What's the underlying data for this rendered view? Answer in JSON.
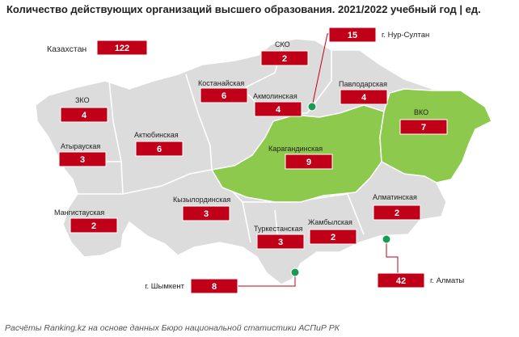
{
  "title": "Количество действующих организаций высшего образования. 2021/2022 учебный год | ед.",
  "source": "Расчёты Ranking.kz на основе данных Бюро национальной статистики АСПиР РК",
  "colors": {
    "region_fill": "#dcdcdc",
    "region_border": "#ffffff",
    "highlight": "#8dc94c",
    "value_box": "#c00018",
    "value_box_border": "#ffffff",
    "city_marker": "#1a9a50",
    "leader_line": "#c00018"
  },
  "total": {
    "label": "Казахстан",
    "value": "122"
  },
  "regions": [
    {
      "id": "sko",
      "name": "СКО",
      "value": "2",
      "highlighted": false
    },
    {
      "id": "kostanay",
      "name": "Костанайская",
      "value": "6",
      "highlighted": false
    },
    {
      "id": "akmola",
      "name": "Акмолинская",
      "value": "4",
      "highlighted": false
    },
    {
      "id": "pavlodar",
      "name": "Павлодарская",
      "value": "4",
      "highlighted": false
    },
    {
      "id": "zko",
      "name": "ЗКО",
      "value": "4",
      "highlighted": false
    },
    {
      "id": "aktobe",
      "name": "Актюбинская",
      "value": "6",
      "highlighted": false
    },
    {
      "id": "atyrau",
      "name": "Атырауская",
      "value": "3",
      "highlighted": false
    },
    {
      "id": "karaganda",
      "name": "Карагандинская",
      "value": "9",
      "highlighted": true
    },
    {
      "id": "vko",
      "name": "ВКО",
      "value": "7",
      "highlighted": true
    },
    {
      "id": "kyzylorda",
      "name": "Кызылординская",
      "value": "3",
      "highlighted": false
    },
    {
      "id": "mangystau",
      "name": "Мангистауская",
      "value": "2",
      "highlighted": false
    },
    {
      "id": "almaty_region",
      "name": "Алматинская",
      "value": "2",
      "highlighted": false
    },
    {
      "id": "turkestan",
      "name": "Туркестанская",
      "value": "3",
      "highlighted": false
    },
    {
      "id": "zhambyl",
      "name": "Жамбылская",
      "value": "2",
      "highlighted": false
    }
  ],
  "cities": [
    {
      "id": "nur_sultan",
      "name": "г. Нур-Султан",
      "value": "15"
    },
    {
      "id": "almaty_city",
      "name": "г. Алматы",
      "value": "42"
    },
    {
      "id": "shymkent",
      "name": "г. Шымкент",
      "value": "8"
    }
  ]
}
